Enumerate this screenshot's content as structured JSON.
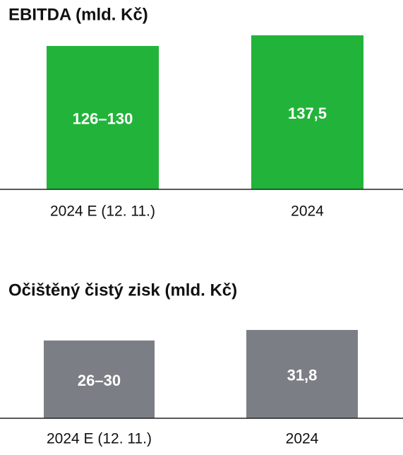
{
  "chart_data": [
    {
      "type": "bar",
      "title": "EBITDA (mld. Kč)",
      "categories": [
        "2024 E (12. 11.)",
        "2024"
      ],
      "values": [
        [
          126,
          130
        ],
        137.5
      ],
      "value_labels": [
        "126–130",
        "137,5"
      ],
      "color": "#22b43a"
    },
    {
      "type": "bar",
      "title": "Očištěný čistý zisk (mld. Kč)",
      "categories": [
        "2024 E (12. 11.)",
        "2024"
      ],
      "values": [
        [
          26,
          30
        ],
        31.8
      ],
      "value_labels": [
        "26–30",
        "31,8"
      ],
      "color": "#7b7f85"
    }
  ]
}
